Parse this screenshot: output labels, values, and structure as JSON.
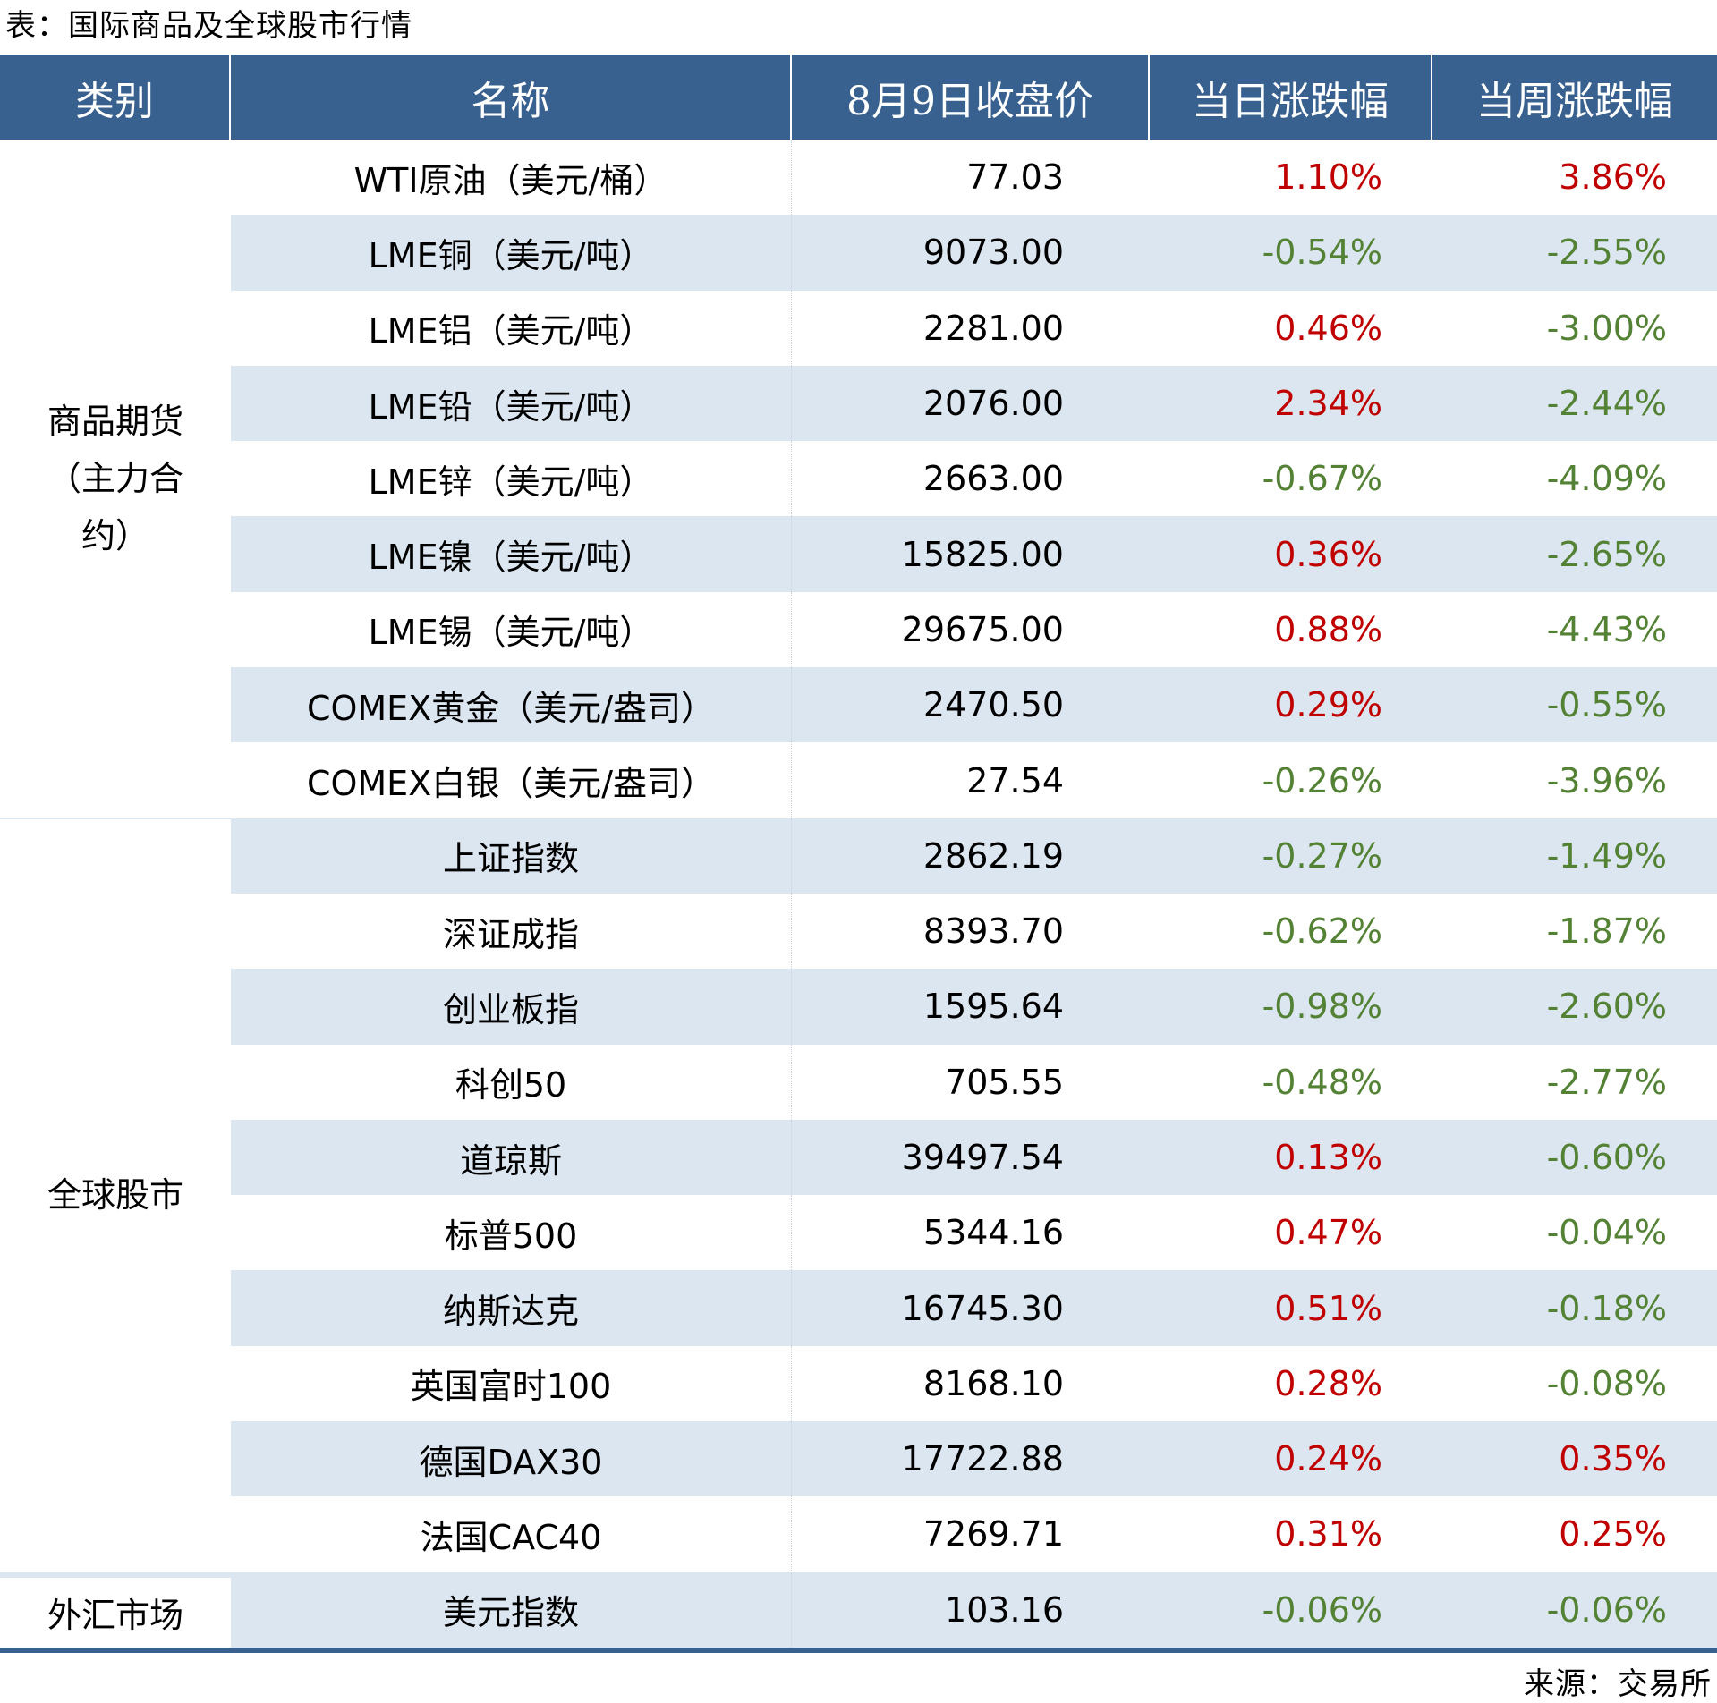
{
  "title": "表：国际商品及全球股市行情",
  "headers": [
    "类别",
    "名称",
    "8月9日收盘价",
    "当日涨跌幅",
    "当周涨跌幅"
  ],
  "colors": {
    "header_bg": "#386190",
    "stripe": "#DCE6F0",
    "up": "#C00000",
    "down": "#548235"
  },
  "groups": [
    {
      "label_lines": [
        "商品期货",
        "（主力合",
        "约）"
      ],
      "label": "商品期货（主力合约）"
    },
    {
      "label_lines": [
        "全球股市"
      ],
      "label": "全球股市"
    },
    {
      "label_lines": [
        "外汇市场"
      ],
      "label": "外汇市场"
    }
  ],
  "rows": [
    {
      "name": "WTI原油（美元/桶）",
      "close": "77.03",
      "day": "1.10%",
      "week": "3.86%",
      "day_dir": "up",
      "week_dir": "up"
    },
    {
      "name": "LME铜（美元/吨）",
      "close": "9073.00",
      "day": "-0.54%",
      "week": "-2.55%",
      "day_dir": "down",
      "week_dir": "down"
    },
    {
      "name": "LME铝（美元/吨）",
      "close": "2281.00",
      "day": "0.46%",
      "week": "-3.00%",
      "day_dir": "up",
      "week_dir": "down"
    },
    {
      "name": "LME铅（美元/吨）",
      "close": "2076.00",
      "day": "2.34%",
      "week": "-2.44%",
      "day_dir": "up",
      "week_dir": "down"
    },
    {
      "name": "LME锌（美元/吨）",
      "close": "2663.00",
      "day": "-0.67%",
      "week": "-4.09%",
      "day_dir": "down",
      "week_dir": "down"
    },
    {
      "name": "LME镍（美元/吨）",
      "close": "15825.00",
      "day": "0.36%",
      "week": "-2.65%",
      "day_dir": "up",
      "week_dir": "down"
    },
    {
      "name": "LME锡（美元/吨）",
      "close": "29675.00",
      "day": "0.88%",
      "week": "-4.43%",
      "day_dir": "up",
      "week_dir": "down"
    },
    {
      "name": "COMEX黄金（美元/盎司）",
      "close": "2470.50",
      "day": "0.29%",
      "week": "-0.55%",
      "day_dir": "up",
      "week_dir": "down"
    },
    {
      "name": "COMEX白银（美元/盎司）",
      "close": "27.54",
      "day": "-0.26%",
      "week": "-3.96%",
      "day_dir": "down",
      "week_dir": "down"
    },
    {
      "name": "上证指数",
      "close": "2862.19",
      "day": "-0.27%",
      "week": "-1.49%",
      "day_dir": "down",
      "week_dir": "down"
    },
    {
      "name": "深证成指",
      "close": "8393.70",
      "day": "-0.62%",
      "week": "-1.87%",
      "day_dir": "down",
      "week_dir": "down"
    },
    {
      "name": "创业板指",
      "close": "1595.64",
      "day": "-0.98%",
      "week": "-2.60%",
      "day_dir": "down",
      "week_dir": "down"
    },
    {
      "name": "科创50",
      "close": "705.55",
      "day": "-0.48%",
      "week": "-2.77%",
      "day_dir": "down",
      "week_dir": "down"
    },
    {
      "name": "道琼斯",
      "close": "39497.54",
      "day": "0.13%",
      "week": "-0.60%",
      "day_dir": "up",
      "week_dir": "down"
    },
    {
      "name": "标普500",
      "close": "5344.16",
      "day": "0.47%",
      "week": "-0.04%",
      "day_dir": "up",
      "week_dir": "down"
    },
    {
      "name": "纳斯达克",
      "close": "16745.30",
      "day": "0.51%",
      "week": "-0.18%",
      "day_dir": "up",
      "week_dir": "down"
    },
    {
      "name": "英国富时100",
      "close": "8168.10",
      "day": "0.28%",
      "week": "-0.08%",
      "day_dir": "up",
      "week_dir": "down"
    },
    {
      "name": "德国DAX30",
      "close": "17722.88",
      "day": "0.24%",
      "week": "0.35%",
      "day_dir": "up",
      "week_dir": "up"
    },
    {
      "name": "法国CAC40",
      "close": "7269.71",
      "day": "0.31%",
      "week": "0.25%",
      "day_dir": "up",
      "week_dir": "up"
    },
    {
      "name": "美元指数",
      "close": "103.16",
      "day": "-0.06%",
      "week": "-0.06%",
      "day_dir": "down",
      "week_dir": "down"
    }
  ],
  "source": "来源：交易所"
}
